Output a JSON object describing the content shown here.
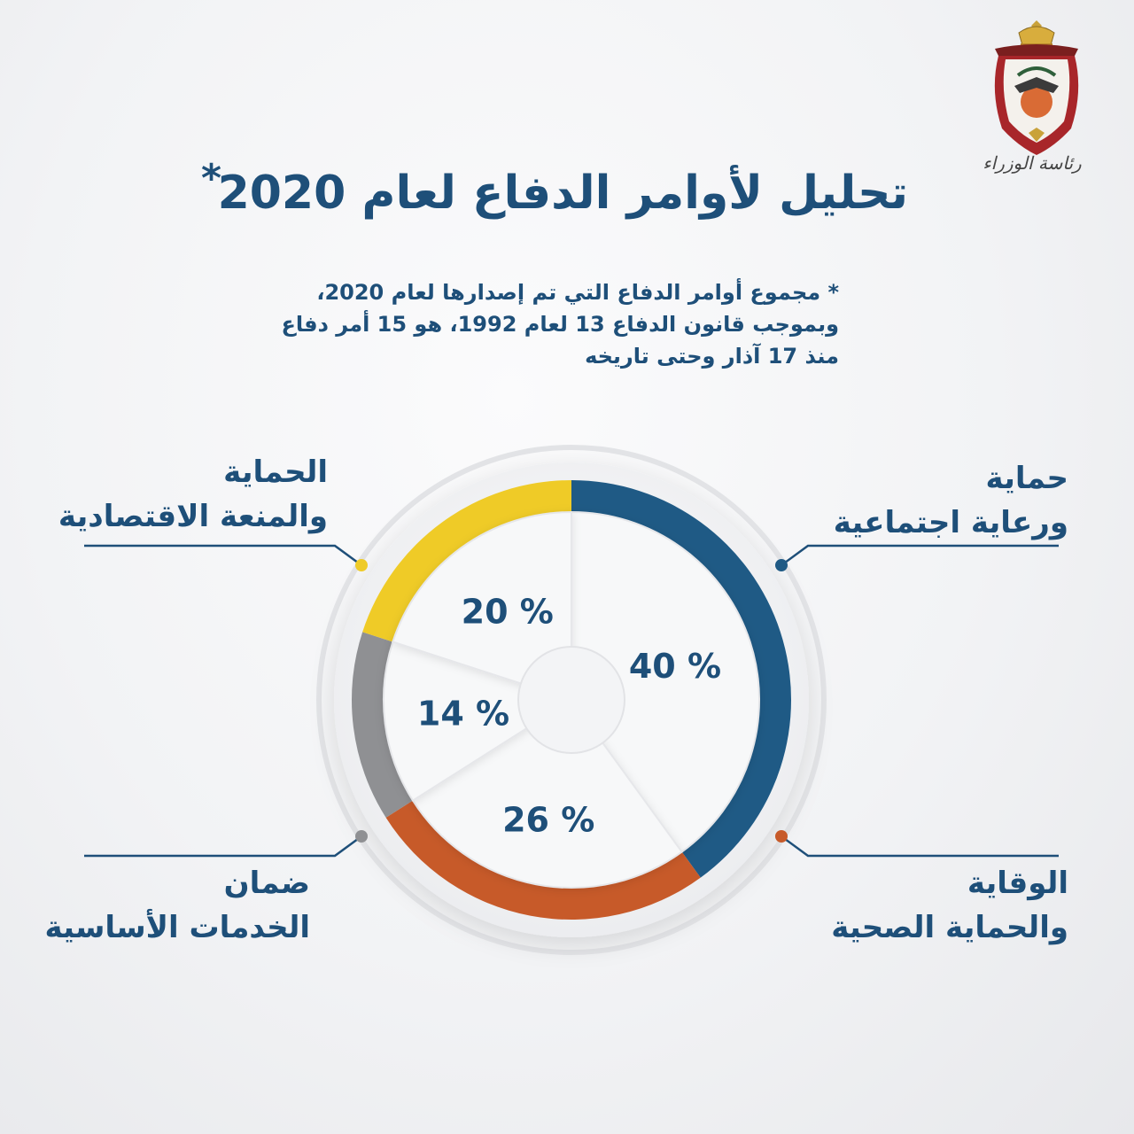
{
  "header": {
    "title": "تحليل لأوامر الدفاع لعام 2020",
    "title_mark": "*",
    "logo_caption": "رئاسة الوزراء"
  },
  "note": {
    "lines": [
      "* مجموع أوامر الدفاع التي تم إصدارها لعام 2020،",
      "وبموجب قانون الدفاع 13 لعام 1992، هو 15 أمر دفاع",
      "منذ 17 آذار وحتى تاريخه"
    ]
  },
  "colors": {
    "blue": "#1f5a85",
    "orange": "#c75a29",
    "gray": "#8f9093",
    "yellow": "#efcb27",
    "text": "#1e4f79"
  },
  "chart_data": {
    "type": "pie",
    "series": [
      {
        "name": "حماية ورعاية اجتماعية",
        "label_lines": [
          "حماية",
          "ورعاية اجتماعية"
        ],
        "value": 40,
        "value_label": "40 %",
        "color": "#1f5a85"
      },
      {
        "name": "الوقاية والحماية الصحية",
        "label_lines": [
          "الوقاية",
          "والحماية الصحية"
        ],
        "value": 26,
        "value_label": "26 %",
        "color": "#c75a29"
      },
      {
        "name": "ضمان الخدمات الأساسية",
        "label_lines": [
          "ضمان",
          "الخدمات الأساسية"
        ],
        "value": 14,
        "value_label": "14 %",
        "color": "#8f9093"
      },
      {
        "name": "الحماية والمنعة الاقتصادية",
        "label_lines": [
          "الحماية",
          "والمنعة الاقتصادية"
        ],
        "value": 20,
        "value_label": "20 %",
        "color": "#efcb27"
      }
    ],
    "unit": "%"
  }
}
